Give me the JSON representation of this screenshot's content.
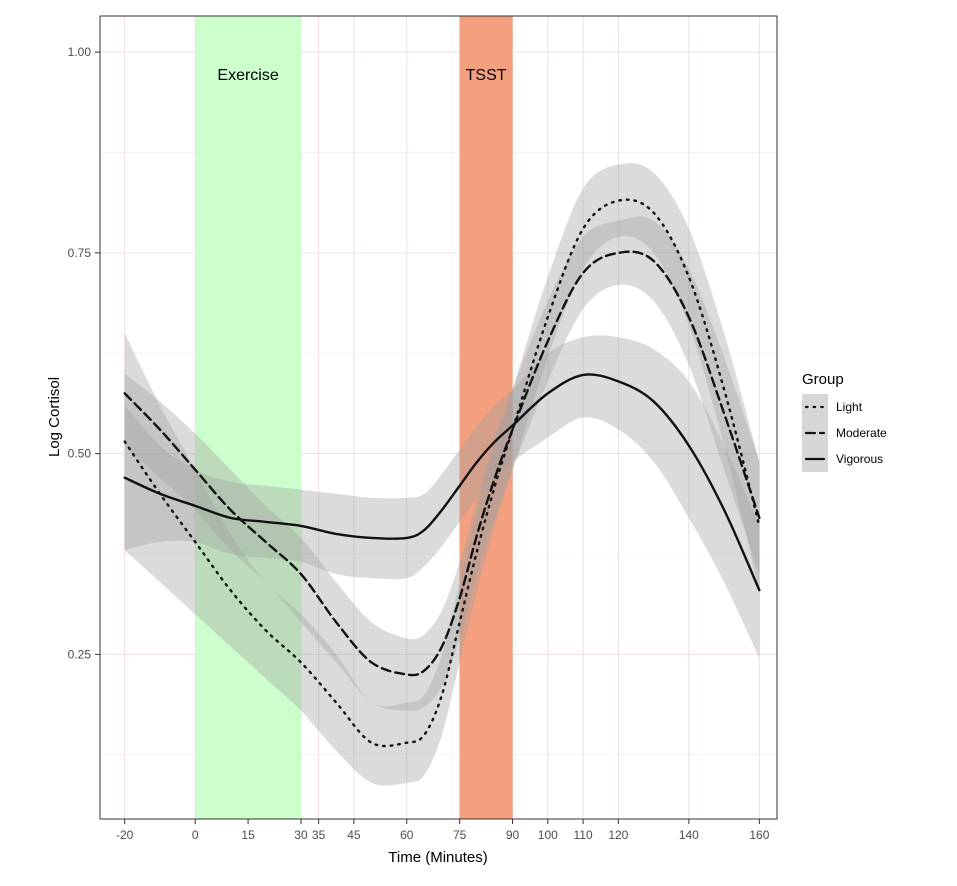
{
  "chart_data": {
    "type": "line",
    "title": "",
    "xlabel": "Time (Minutes)",
    "ylabel": "Log Cortisol",
    "xlim": [
      -27,
      165
    ],
    "ylim": [
      0.045,
      1.045
    ],
    "x_ticks": [
      -20,
      0,
      15,
      30,
      35,
      45,
      60,
      75,
      90,
      100,
      110,
      120,
      140,
      160
    ],
    "x_tick_labels": [
      "-20",
      "0",
      "15",
      "30",
      "35",
      "45",
      "60",
      "75",
      "90",
      "100",
      "110",
      "120",
      "140",
      "160"
    ],
    "y_ticks": [
      0.25,
      0.5,
      0.75,
      1.0
    ],
    "y_tick_labels": [
      "0.25",
      "0.50",
      "0.75",
      "1.00"
    ],
    "y_minor_ticks": [
      0.125,
      0.375,
      0.625,
      0.875
    ],
    "grid": true,
    "bands": [
      {
        "label": "Exercise",
        "x_start": 0,
        "x_end": 30,
        "color": "#ccffcc"
      },
      {
        "label": "TSST",
        "x_start": 75,
        "x_end": 90,
        "color": "#f4a07e"
      }
    ],
    "legend": {
      "title": "Group",
      "position": "right",
      "entries": [
        "Light",
        "Moderate",
        "Vigorous"
      ]
    },
    "series": [
      {
        "name": "Light",
        "linestyle": "dotted",
        "x": [
          -20,
          -10,
          0,
          10,
          20,
          30,
          40,
          50,
          60,
          65,
          70,
          75,
          80,
          85,
          90,
          100,
          110,
          120,
          130,
          140,
          150,
          160
        ],
        "values": [
          0.515,
          0.45,
          0.39,
          0.33,
          0.28,
          0.24,
          0.19,
          0.14,
          0.14,
          0.15,
          0.2,
          0.29,
          0.38,
          0.46,
          0.53,
          0.67,
          0.78,
          0.815,
          0.8,
          0.72,
          0.58,
          0.41
        ],
        "ci_lower": [
          0.38,
          0.34,
          0.3,
          0.26,
          0.22,
          0.18,
          0.13,
          0.09,
          0.09,
          0.1,
          0.15,
          0.24,
          0.33,
          0.41,
          0.48,
          0.62,
          0.73,
          0.77,
          0.75,
          0.66,
          0.51,
          0.33
        ],
        "ci_upper": [
          0.65,
          0.56,
          0.48,
          0.4,
          0.34,
          0.3,
          0.25,
          0.19,
          0.19,
          0.2,
          0.25,
          0.34,
          0.43,
          0.51,
          0.58,
          0.72,
          0.83,
          0.86,
          0.85,
          0.78,
          0.65,
          0.49
        ]
      },
      {
        "name": "Moderate",
        "linestyle": "dashed",
        "x": [
          -20,
          -10,
          0,
          10,
          20,
          30,
          40,
          50,
          60,
          65,
          70,
          75,
          80,
          85,
          90,
          100,
          110,
          120,
          130,
          140,
          150,
          160
        ],
        "values": [
          0.575,
          0.53,
          0.48,
          0.43,
          0.39,
          0.35,
          0.29,
          0.24,
          0.225,
          0.23,
          0.26,
          0.32,
          0.4,
          0.47,
          0.53,
          0.64,
          0.725,
          0.75,
          0.74,
          0.67,
          0.55,
          0.42
        ],
        "ci_lower": [
          0.51,
          0.47,
          0.43,
          0.38,
          0.34,
          0.29,
          0.24,
          0.19,
          0.18,
          0.185,
          0.21,
          0.27,
          0.35,
          0.42,
          0.48,
          0.59,
          0.68,
          0.71,
          0.69,
          0.61,
          0.48,
          0.35
        ],
        "ci_upper": [
          0.6,
          0.565,
          0.525,
          0.48,
          0.435,
          0.395,
          0.34,
          0.29,
          0.27,
          0.275,
          0.305,
          0.365,
          0.445,
          0.52,
          0.58,
          0.69,
          0.77,
          0.79,
          0.79,
          0.73,
          0.62,
          0.49
        ]
      },
      {
        "name": "Vigorous",
        "linestyle": "solid",
        "x": [
          -20,
          -10,
          0,
          10,
          20,
          30,
          40,
          50,
          60,
          65,
          70,
          75,
          80,
          85,
          90,
          100,
          110,
          120,
          130,
          140,
          150,
          160
        ],
        "values": [
          0.47,
          0.45,
          0.435,
          0.42,
          0.415,
          0.41,
          0.4,
          0.395,
          0.395,
          0.405,
          0.43,
          0.46,
          0.49,
          0.515,
          0.535,
          0.575,
          0.598,
          0.59,
          0.565,
          0.51,
          0.43,
          0.33
        ],
        "ci_lower": [
          0.38,
          0.39,
          0.39,
          0.375,
          0.37,
          0.365,
          0.35,
          0.345,
          0.345,
          0.36,
          0.385,
          0.415,
          0.445,
          0.47,
          0.49,
          0.52,
          0.545,
          0.53,
          0.49,
          0.42,
          0.34,
          0.245
        ],
        "ci_upper": [
          0.56,
          0.51,
          0.48,
          0.465,
          0.46,
          0.455,
          0.45,
          0.445,
          0.445,
          0.45,
          0.475,
          0.505,
          0.535,
          0.56,
          0.58,
          0.625,
          0.645,
          0.645,
          0.63,
          0.59,
          0.51,
          0.41
        ]
      }
    ]
  }
}
